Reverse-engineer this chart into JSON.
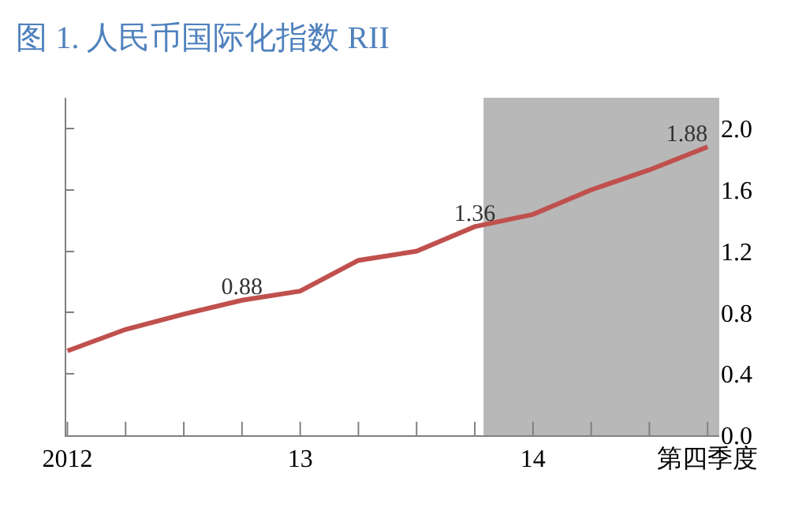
{
  "chart_data": {
    "type": "line",
    "title": "图 1. 人民币国际化指数 RII",
    "categories": [
      "2012",
      null,
      null,
      null,
      "13",
      null,
      null,
      null,
      "14",
      null,
      null,
      "第四季度"
    ],
    "series": [
      {
        "color": "#c0504d",
        "values": [
          0.55,
          0.69,
          0.79,
          0.88,
          0.94,
          1.14,
          1.2,
          1.36,
          1.44,
          1.6,
          1.73,
          1.88
        ],
        "value_labels": [
          null,
          null,
          null,
          "0.88",
          null,
          null,
          null,
          "1.36",
          null,
          null,
          null,
          "1.88"
        ]
      }
    ],
    "ylim": [
      0,
      2.2
    ],
    "yticks": [
      {
        "value": 0,
        "label": "0.0"
      },
      {
        "value": 0.4,
        "label": "0.4"
      },
      {
        "value": 0.8,
        "label": "0.8"
      },
      {
        "value": 1.2,
        "label": "1.2"
      },
      {
        "value": 1.6,
        "label": "1.6"
      },
      {
        "value": 2.0,
        "label": "2.0"
      }
    ],
    "grid": false,
    "marker": "none",
    "line_style": "solid"
  }
}
